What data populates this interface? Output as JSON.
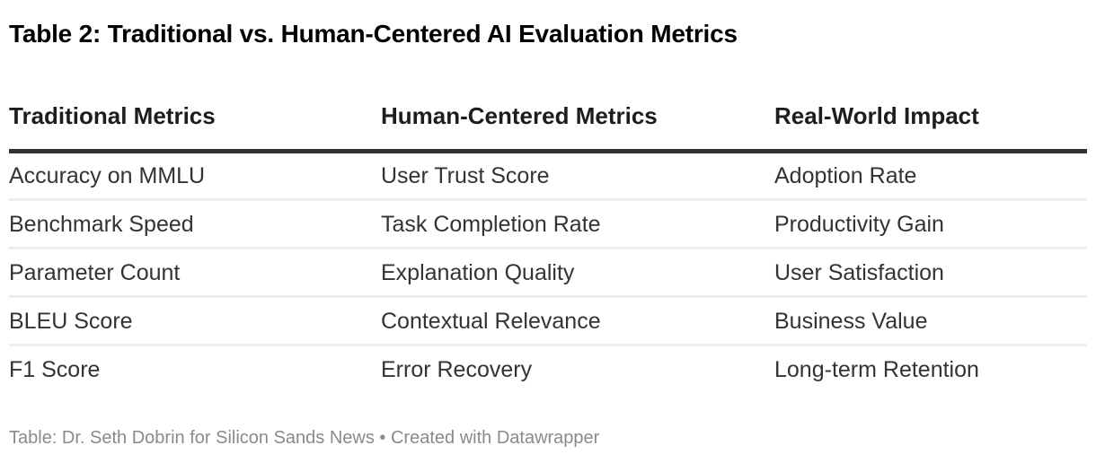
{
  "chart_data": {
    "type": "table",
    "title": "Table 2: Traditional vs. Human-Centered AI Evaluation Metrics",
    "columns": [
      "Traditional Metrics",
      "Human-Centered Metrics",
      "Real-World Impact"
    ],
    "rows": [
      [
        "Accuracy on MMLU",
        "User Trust Score",
        "Adoption Rate"
      ],
      [
        "Benchmark Speed",
        "Task Completion Rate",
        "Productivity Gain"
      ],
      [
        "Parameter Count",
        "Explanation Quality",
        "User Satisfaction"
      ],
      [
        "BLEU Score",
        "Contextual Relevance",
        "Business Value"
      ],
      [
        "F1 Score",
        "Error Recovery",
        "Long-term Retention"
      ]
    ],
    "layout_hints": {
      "header_rule": "thick-dark-bottom-border",
      "row_dividers": "thin-light-gray",
      "legend": "none"
    }
  },
  "footer": {
    "attribution": "Table: Dr. Seth Dobrin for Silicon Sands News",
    "separator": " • ",
    "credit": "Created with Datawrapper"
  },
  "colors": {
    "background": "#ffffff",
    "title_text": "#000000",
    "header_text": "#1d1d1d",
    "body_text": "#333333",
    "header_rule": "#333333",
    "row_divider": "#ededed",
    "footer_text": "#8a8a8a"
  }
}
